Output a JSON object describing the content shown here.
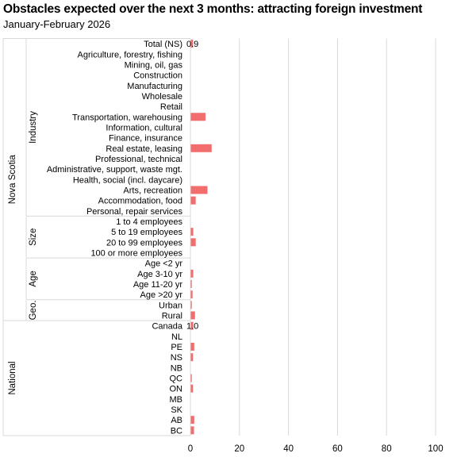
{
  "chart_data": {
    "type": "bar",
    "orientation": "horizontal",
    "title": "Obstacles expected over the next 3 months:  attracting foreign investment",
    "subtitle": "January-February  2026",
    "xlim": [
      0,
      100
    ],
    "x_ticks": [
      0,
      20,
      40,
      60,
      80,
      100
    ],
    "grid": "vertical",
    "bar_color": "#f26d6d",
    "groups": [
      {
        "outer": "Nova Scotia",
        "inner": "Industry",
        "rows": [
          {
            "label": "Total (NS)",
            "value": 0.9,
            "data_label": "0.9"
          },
          {
            "label": "Agriculture, forestry, fishing",
            "value": 0
          },
          {
            "label": "Mining, oil, gas",
            "value": 0
          },
          {
            "label": "Construction",
            "value": 0
          },
          {
            "label": "Manufacturing",
            "value": 0
          },
          {
            "label": "Wholesale",
            "value": 0
          },
          {
            "label": "Retail",
            "value": 0
          },
          {
            "label": "Transportation, warehousing",
            "value": 6.0
          },
          {
            "label": "Information, cultural",
            "value": 0
          },
          {
            "label": "Finance, insurance",
            "value": 0
          },
          {
            "label": "Real estate, leasing",
            "value": 8.5
          },
          {
            "label": "Professional, technical",
            "value": 0
          },
          {
            "label": "Administrative, support, waste mgt.",
            "value": 0
          },
          {
            "label": "Health, social (incl. daycare)",
            "value": 0
          },
          {
            "label": "Arts, recreation",
            "value": 6.8
          },
          {
            "label": "Accommodation, food",
            "value": 2.0
          },
          {
            "label": "Personal, repair services",
            "value": 0
          }
        ]
      },
      {
        "outer": "Nova Scotia",
        "inner": "Size",
        "rows": [
          {
            "label": "1 to 4 employees",
            "value": 0
          },
          {
            "label": "5 to 19 employees",
            "value": 1.0
          },
          {
            "label": "20 to 99 employees",
            "value": 2.0
          },
          {
            "label": "100 or more employees",
            "value": 0
          }
        ]
      },
      {
        "outer": "Nova Scotia",
        "inner": "Age",
        "rows": [
          {
            "label": "Age <2 yr",
            "value": 0
          },
          {
            "label": "Age 3-10 yr",
            "value": 1.0
          },
          {
            "label": "Age 11-20 yr",
            "value": 0.4
          },
          {
            "label": "Age >20 yr",
            "value": 0.7
          }
        ]
      },
      {
        "outer": "Nova Scotia",
        "inner": "Geo.",
        "rows": [
          {
            "label": "Urban",
            "value": 0.4
          },
          {
            "label": "Rural",
            "value": 1.7
          }
        ]
      },
      {
        "outer": "National",
        "inner": "",
        "rows": [
          {
            "label": "Canada",
            "value": 1.0,
            "data_label": "1.0"
          },
          {
            "label": "NL",
            "value": 0
          },
          {
            "label": "PE",
            "value": 1.4
          },
          {
            "label": "NS",
            "value": 0.9
          },
          {
            "label": "NB",
            "value": 0
          },
          {
            "label": "QC",
            "value": 0.4
          },
          {
            "label": "ON",
            "value": 0.9
          },
          {
            "label": "MB",
            "value": 0
          },
          {
            "label": "SK",
            "value": 0
          },
          {
            "label": "AB",
            "value": 1.4
          },
          {
            "label": "BC",
            "value": 1.3
          }
        ]
      }
    ]
  }
}
